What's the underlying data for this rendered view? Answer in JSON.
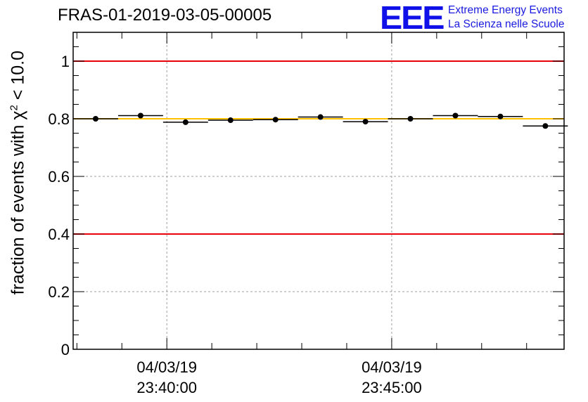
{
  "chart_data": {
    "type": "scatter",
    "title": "FRAS-01-2019-03-05-00005",
    "logo": {
      "mark": "EEE",
      "line1": "Extreme Energy Events",
      "line2": "La Scienza nelle Scuole"
    },
    "ylabel_prefix": "fraction of events with ",
    "ylabel_symbol": "χ",
    "ylabel_exp": "2",
    "ylabel_suffix": " < 10.0",
    "xlabel": "",
    "xlim": [
      "04/03/19 23:37:55",
      "04/03/19 23:48:50"
    ],
    "ylim": [
      0,
      1.1
    ],
    "grid": true,
    "yticks": [
      0,
      0.2,
      0.4,
      0.6,
      0.8,
      1
    ],
    "ytick_labels": [
      "0",
      "0.2",
      "0.4",
      "0.6",
      "0.8",
      "1"
    ],
    "xticks": [
      {
        "time": "04/03/19 23:40:00",
        "date": "04/03/19",
        "clock": "23:40:00"
      },
      {
        "time": "04/03/19 23:45:00",
        "date": "04/03/19",
        "clock": "23:45:00"
      }
    ],
    "reference_lines": [
      {
        "y": 1.0,
        "color": "#e8000b"
      },
      {
        "y": 0.4,
        "color": "#e8000b"
      },
      {
        "y": 0.8,
        "color": "#ffc000"
      }
    ],
    "series": [
      {
        "marker_color": "#000000",
        "bin_width_seconds": 60,
        "points": [
          {
            "x": "04/03/19 23:38:25",
            "y": 0.8
          },
          {
            "x": "04/03/19 23:39:25",
            "y": 0.811
          },
          {
            "x": "04/03/19 23:40:25",
            "y": 0.788
          },
          {
            "x": "04/03/19 23:41:25",
            "y": 0.795
          },
          {
            "x": "04/03/19 23:42:25",
            "y": 0.797
          },
          {
            "x": "04/03/19 23:43:25",
            "y": 0.806
          },
          {
            "x": "04/03/19 23:44:25",
            "y": 0.79
          },
          {
            "x": "04/03/19 23:45:25",
            "y": 0.8
          },
          {
            "x": "04/03/19 23:46:25",
            "y": 0.811
          },
          {
            "x": "04/03/19 23:47:25",
            "y": 0.808
          },
          {
            "x": "04/03/19 23:48:25",
            "y": 0.775
          }
        ]
      }
    ]
  }
}
